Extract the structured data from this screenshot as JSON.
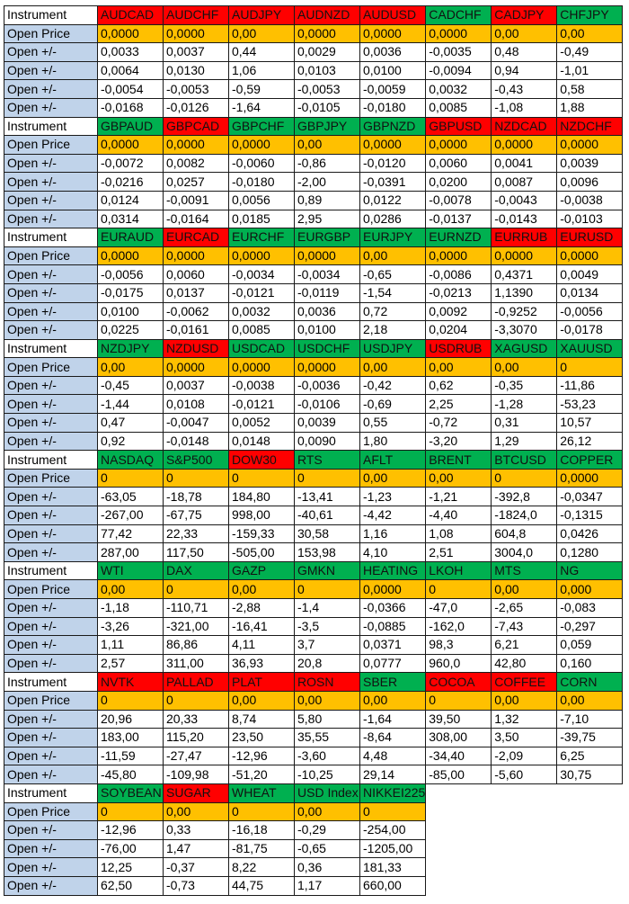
{
  "labels": {
    "instrument": "Instrument",
    "open_price": "Open Price",
    "delta": "Open +/-"
  },
  "colors": {
    "green": "#00b050",
    "red": "#ff0000",
    "orange": "#ffc000",
    "label_blue": "#c0d3ea"
  },
  "blocks": [
    {
      "instruments": [
        {
          "name": "AUDCAD",
          "color": "red"
        },
        {
          "name": "AUDCHF",
          "color": "red"
        },
        {
          "name": "AUDJPY",
          "color": "red"
        },
        {
          "name": "AUDNZD",
          "color": "red"
        },
        {
          "name": "AUDUSD",
          "color": "red"
        },
        {
          "name": "CADCHF",
          "color": "green"
        },
        {
          "name": "CADJPY",
          "color": "red"
        },
        {
          "name": "CHFJPY",
          "color": "green"
        }
      ],
      "open_prices": [
        "0,0000",
        "0,0000",
        "0,00",
        "0,0000",
        "0,0000",
        "0,0000",
        "0,00",
        "0,00"
      ],
      "deltas": [
        [
          "0,0033",
          "0,0037",
          "0,44",
          "0,0029",
          "0,0036",
          "-0,0035",
          "0,48",
          "-0,49"
        ],
        [
          "0,0064",
          "0,0130",
          "1,06",
          "0,0103",
          "0,0100",
          "-0,0094",
          "0,94",
          "-1,01"
        ],
        [
          "-0,0054",
          "-0,0053",
          "-0,59",
          "-0,0053",
          "-0,0059",
          "0,0032",
          "-0,43",
          "0,58"
        ],
        [
          "-0,0168",
          "-0,0126",
          "-1,64",
          "-0,0105",
          "-0,0180",
          "0,0085",
          "-1,08",
          "1,88"
        ]
      ]
    },
    {
      "instruments": [
        {
          "name": "GBPAUD",
          "color": "green"
        },
        {
          "name": "GBPCAD",
          "color": "red"
        },
        {
          "name": "GBPCHF",
          "color": "green"
        },
        {
          "name": "GBPJPY",
          "color": "green"
        },
        {
          "name": "GBPNZD",
          "color": "green"
        },
        {
          "name": "GBPUSD",
          "color": "red"
        },
        {
          "name": "NZDCAD",
          "color": "red"
        },
        {
          "name": "NZDCHF",
          "color": "red"
        }
      ],
      "open_prices": [
        "0,0000",
        "0,0000",
        "0,0000",
        "0,00",
        "0,0000",
        "0,0000",
        "0,0000",
        "0,0000"
      ],
      "deltas": [
        [
          "-0,0072",
          "0,0082",
          "-0,0060",
          "-0,86",
          "-0,0120",
          "0,0060",
          "0,0041",
          "0,0039"
        ],
        [
          "-0,0216",
          "0,0257",
          "-0,0180",
          "-2,00",
          "-0,0391",
          "0,0200",
          "0,0087",
          "0,0096"
        ],
        [
          "0,0124",
          "-0,0091",
          "0,0056",
          "0,89",
          "0,0122",
          "-0,0078",
          "-0,0043",
          "-0,0038"
        ],
        [
          "0,0314",
          "-0,0164",
          "0,0185",
          "2,95",
          "0,0286",
          "-0,0137",
          "-0,0143",
          "-0,0103"
        ]
      ]
    },
    {
      "instruments": [
        {
          "name": "EURAUD",
          "color": "green"
        },
        {
          "name": "EURCAD",
          "color": "red"
        },
        {
          "name": "EURCHF",
          "color": "green"
        },
        {
          "name": "EURGBP",
          "color": "green"
        },
        {
          "name": "EURJPY",
          "color": "green"
        },
        {
          "name": "EURNZD",
          "color": "green"
        },
        {
          "name": "EURRUB",
          "color": "red"
        },
        {
          "name": "EURUSD",
          "color": "red"
        }
      ],
      "open_prices": [
        "0,0000",
        "0,0000",
        "0,0000",
        "0,0000",
        "0,00",
        "0,0000",
        "0,0000",
        "0,0000"
      ],
      "deltas": [
        [
          "-0,0056",
          "0,0060",
          "-0,0034",
          "-0,0034",
          "-0,65",
          "-0,0086",
          "0,4371",
          "0,0049"
        ],
        [
          "-0,0175",
          "0,0137",
          "-0,0121",
          "-0,0119",
          "-1,54",
          "-0,0213",
          "1,1390",
          "0,0134"
        ],
        [
          "0,0100",
          "-0,0062",
          "0,0032",
          "0,0036",
          "0,72",
          "0,0092",
          "-0,9252",
          "-0,0056"
        ],
        [
          "0,0225",
          "-0,0161",
          "0,0085",
          "0,0100",
          "2,18",
          "0,0204",
          "-3,3070",
          "-0,0178"
        ]
      ]
    },
    {
      "instruments": [
        {
          "name": "NZDJPY",
          "color": "green"
        },
        {
          "name": "NZDUSD",
          "color": "red"
        },
        {
          "name": "USDCAD",
          "color": "green"
        },
        {
          "name": "USDCHF",
          "color": "green"
        },
        {
          "name": "USDJPY",
          "color": "green"
        },
        {
          "name": "USDRUB",
          "color": "red"
        },
        {
          "name": "XAGUSD",
          "color": "green"
        },
        {
          "name": "XAUUSD",
          "color": "green"
        }
      ],
      "open_prices": [
        "0,00",
        "0,0000",
        "0,0000",
        "0,0000",
        "0,00",
        "0,00",
        "0,00",
        "0"
      ],
      "deltas": [
        [
          "-0,45",
          "0,0037",
          "-0,0038",
          "-0,0036",
          "-0,42",
          "0,62",
          "-0,35",
          "-11,86"
        ],
        [
          "-1,44",
          "0,0108",
          "-0,0121",
          "-0,0106",
          "-0,69",
          "2,25",
          "-1,28",
          "-53,23"
        ],
        [
          "0,47",
          "-0,0047",
          "0,0052",
          "0,0039",
          "0,55",
          "-0,72",
          "0,31",
          "10,57"
        ],
        [
          "0,92",
          "-0,0148",
          "0,0148",
          "0,0090",
          "1,80",
          "-3,20",
          "1,29",
          "26,12"
        ]
      ]
    },
    {
      "instruments": [
        {
          "name": "NASDAQ",
          "color": "green"
        },
        {
          "name": "S&P500",
          "color": "green"
        },
        {
          "name": "DOW30",
          "color": "red"
        },
        {
          "name": "RTS",
          "color": "green"
        },
        {
          "name": "AFLT",
          "color": "green"
        },
        {
          "name": "BRENT",
          "color": "green"
        },
        {
          "name": "BTCUSD",
          "color": "green"
        },
        {
          "name": "COPPER",
          "color": "green"
        }
      ],
      "open_prices": [
        "0",
        "0",
        "0",
        "0",
        "0,00",
        "0,00",
        "0",
        "0,0000"
      ],
      "deltas": [
        [
          "-63,05",
          "-18,78",
          "184,80",
          "-13,41",
          "-1,23",
          "-1,21",
          "-392,8",
          "-0,0347"
        ],
        [
          "-267,00",
          "-67,75",
          "998,00",
          "-40,61",
          "-4,42",
          "-4,40",
          "-1824,0",
          "-0,1315"
        ],
        [
          "77,42",
          "22,33",
          "-159,33",
          "30,58",
          "1,16",
          "1,08",
          "604,8",
          "0,0426"
        ],
        [
          "287,00",
          "117,50",
          "-505,00",
          "153,98",
          "4,10",
          "2,51",
          "3004,0",
          "0,1280"
        ]
      ]
    },
    {
      "instruments": [
        {
          "name": "WTI",
          "color": "green"
        },
        {
          "name": "DAX",
          "color": "green"
        },
        {
          "name": "GAZP",
          "color": "green"
        },
        {
          "name": "GMKN",
          "color": "green"
        },
        {
          "name": "HEATING",
          "color": "green"
        },
        {
          "name": "LKOH",
          "color": "green"
        },
        {
          "name": "MTS",
          "color": "green"
        },
        {
          "name": "NG",
          "color": "green"
        }
      ],
      "open_prices": [
        "0,00",
        "0",
        "0,00",
        "0",
        "0,0000",
        "0",
        "0,00",
        "0,000"
      ],
      "deltas": [
        [
          "-1,18",
          "-110,71",
          "-2,88",
          "-1,4",
          "-0,0366",
          "-47,0",
          "-2,65",
          "-0,083"
        ],
        [
          "-3,26",
          "-321,00",
          "-16,41",
          "-3,5",
          "-0,0885",
          "-162,0",
          "-7,43",
          "-0,297"
        ],
        [
          "1,11",
          "86,86",
          "4,11",
          "3,7",
          "0,0371",
          "98,3",
          "6,21",
          "0,059"
        ],
        [
          "2,57",
          "311,00",
          "36,93",
          "20,8",
          "0,0777",
          "960,0",
          "42,80",
          "0,160"
        ]
      ]
    },
    {
      "instruments": [
        {
          "name": "NVTK",
          "color": "red"
        },
        {
          "name": "PALLAD",
          "color": "red"
        },
        {
          "name": "PLAT",
          "color": "red"
        },
        {
          "name": "ROSN",
          "color": "red"
        },
        {
          "name": "SBER",
          "color": "green"
        },
        {
          "name": "COCOA",
          "color": "red"
        },
        {
          "name": "COFFEE",
          "color": "red"
        },
        {
          "name": "CORN",
          "color": "green"
        }
      ],
      "open_prices": [
        "0",
        "0",
        "0,00",
        "0,00",
        "0,00",
        "0",
        "0,00",
        "0,00"
      ],
      "deltas": [
        [
          "20,96",
          "20,33",
          "8,74",
          "5,80",
          "-1,64",
          "39,50",
          "1,32",
          "-7,10"
        ],
        [
          "183,00",
          "115,20",
          "23,50",
          "35,55",
          "-8,64",
          "308,00",
          "3,50",
          "-39,75"
        ],
        [
          "-11,59",
          "-27,47",
          "-12,96",
          "-3,60",
          "4,48",
          "-34,40",
          "-2,09",
          "6,25"
        ],
        [
          "-45,80",
          "-109,98",
          "-51,20",
          "-10,25",
          "29,14",
          "-85,00",
          "-5,60",
          "30,75"
        ]
      ]
    },
    {
      "instruments": [
        {
          "name": "SOYBEAN",
          "color": "green"
        },
        {
          "name": "SUGAR",
          "color": "red"
        },
        {
          "name": "WHEAT",
          "color": "green"
        },
        {
          "name": "USD Index",
          "color": "green"
        },
        {
          "name": "NIKKEI225",
          "color": "green"
        }
      ],
      "open_prices": [
        "0",
        "0,00",
        "0",
        "0,00",
        "0"
      ],
      "deltas": [
        [
          "-12,96",
          "0,33",
          "-16,18",
          "-0,29",
          "-254,00"
        ],
        [
          "-76,00",
          "1,47",
          "-81,75",
          "-0,65",
          "-1205,00"
        ],
        [
          "12,25",
          "-0,37",
          "8,22",
          "0,36",
          "181,33"
        ],
        [
          "62,50",
          "-0,73",
          "44,75",
          "1,17",
          "660,00"
        ]
      ]
    }
  ]
}
